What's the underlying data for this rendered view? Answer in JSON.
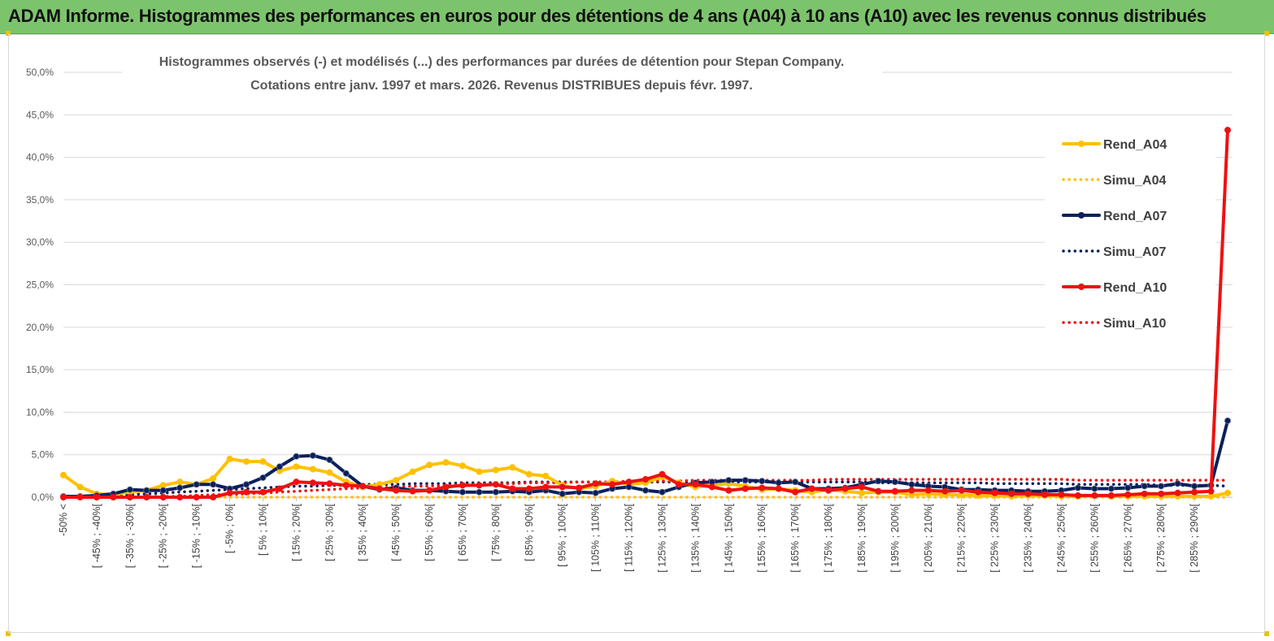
{
  "banner": {
    "title": "ADAM Informe. Histogrammes des performances en euros pour des détentions de 4 ans (A04) à 10 ans (A10) avec les revenus connus distribués",
    "color": "#7cc46c"
  },
  "chart_data": {
    "type": "line",
    "title": "",
    "subtitle_lines": [
      "Histogrammes observés (-) et modélisés (...) des performances par durées de détention pour Stepan Company.",
      "Cotations entre janv. 1997 et mars. 2026. Revenus DISTRIBUES depuis févr. 1997."
    ],
    "xlabel": "",
    "ylabel": "",
    "ylim": [
      0,
      50
    ],
    "y_ticks": [
      "0,0%",
      "5,0%",
      "10,0%",
      "15,0%",
      "20,0%",
      "25,0%",
      "30,0%",
      "35,0%",
      "40,0%",
      "45,0%",
      "50,0%"
    ],
    "grid": "horizontal",
    "legend_position": "right",
    "categories": [
      "-50% <",
      "[ -50% ; -45%[",
      "[ -45% ; -40%[",
      "[ -40% ; -35%[",
      "[ -35% ; -30%[",
      "[ -30% ; -25%[",
      "[ -25% ; -20%[",
      "[ -20% ; -15%[",
      "[ -15% ; -10%[",
      "[ -10% ; -5%[",
      "[ -5% ; 0%[",
      "[ 0% ; 5%[",
      "[ 5% ; 10%[",
      "[ 10% ; 15%[",
      "[ 15% ; 20%[",
      "[ 20% ; 25%[",
      "[ 25% ; 30%[",
      "[ 30% ; 35%[",
      "[ 35% ; 40%[",
      "[ 40% ; 45%[",
      "[ 45% ; 50%[",
      "[ 50% ; 55%[",
      "[ 55% ; 60%[",
      "[ 60% ; 65%[",
      "[ 65% ; 70%[",
      "[ 70% ; 75%[",
      "[ 75% ; 80%[",
      "[ 80% ; 85%[",
      "[ 85% ; 90%[",
      "[ 90% ; 95%[",
      "[ 95% ; 100%[",
      "[ 100% ; 105%[",
      "[ 105% ; 110%[",
      "[ 110% ; 115%[",
      "[ 115% ; 120%[",
      "[ 120% ; 125%[",
      "[ 125% ; 130%[",
      "[ 130% ; 135%[",
      "[ 135% ; 140%[",
      "[ 140% ; 145%[",
      "[ 145% ; 150%[",
      "[ 150% ; 155%[",
      "[ 155% ; 160%[",
      "[ 160% ; 165%[",
      "[ 165% ; 170%[",
      "[ 170% ; 175%[",
      "[ 175% ; 180%[",
      "[ 180% ; 185%[",
      "[ 185% ; 190%[",
      "[ 190% ; 195%[",
      "[ 195% ; 200%[",
      "[ 200% ; 205%[",
      "[ 205% ; 210%[",
      "[ 210% ; 215%[",
      "[ 215% ; 220%[",
      "[ 220% ; 225%[",
      "[ 225% ; 230%[",
      "[ 230% ; 235%[",
      "[ 235% ; 240%[",
      "[ 240% ; 245%[",
      "[ 245% ; 250%[",
      "[ 250% ; 255%[",
      "[ 255% ; 260%[",
      "[ 260% ; 265%[",
      "[ 265% ; 270%[",
      "[ 270% ; 275%[",
      "[ 275% ; 280%[",
      "[ 280% ; 285%[",
      "[ 285% ; 290%[",
      "[ 290% ; 295%[",
      "> 295%"
    ],
    "shown_x_tick_labels": [
      "-50% <",
      "[ -45% ; -40%[",
      "[ -35% ; -30%[",
      "[ -25% ; -20%[",
      "[ -15% ; -10%[",
      "[ -5% ; 0%[",
      "[ 5% ; 10%[",
      "[ 15% ; 20%[",
      "[ 25% ; 30%[",
      "[ 35% ; 40%[",
      "[ 45% ; 50%[",
      "[ 55% ; 60%[",
      "[ 65% ; 70%[",
      "[ 75% ; 80%[",
      "[ 85% ; 90%[",
      "[ 95% ; 100%[",
      "[ 105% ; 110%[",
      "[ 115% ; 120%[",
      "[ 125% ; 130%[",
      "[ 135% ; 140%[",
      "[ 145% ; 150%[",
      "[ 155% ; 160%[",
      "[ 165% ; 170%[",
      "[ 175% ; 180%[",
      "[ 185% ; 190%[",
      "[ 195% ; 200%[",
      "[ 205% ; 210%[",
      "[ 215% ; 220%[",
      "[ 225% ; 230%[",
      "[ 235% ; 240%[",
      "[ 245% ; 250%[",
      "[ 255% ; 260%[",
      "[ 265% ; 270%[",
      "[ 275% ; 280%[",
      "[ 285% ; 290%["
    ],
    "series": [
      {
        "name": "Rend_A04",
        "style": "solid",
        "color": "#ffc000",
        "values": [
          2.6,
          1.2,
          0.4,
          0.3,
          0.6,
          0.8,
          1.4,
          1.8,
          1.5,
          2.2,
          4.5,
          4.2,
          4.2,
          3.1,
          3.6,
          3.3,
          2.9,
          1.8,
          1.2,
          1.5,
          2.0,
          3.0,
          3.8,
          4.1,
          3.7,
          3.0,
          3.2,
          3.5,
          2.7,
          2.5,
          1.4,
          1.0,
          1.3,
          1.9,
          1.5,
          1.7,
          2.4,
          1.7,
          1.2,
          1.4,
          1.6,
          1.3,
          0.9,
          1.0,
          0.8,
          0.6,
          0.9,
          0.7,
          0.5,
          0.6,
          0.6,
          0.3,
          0.4,
          0.3,
          0.3,
          0.2,
          0.2,
          0.1,
          0.2,
          0.2,
          0.1,
          0.1,
          0.2,
          0.1,
          0.1,
          0.1,
          0.1,
          0.1,
          0.1,
          0.1,
          0.5
        ]
      },
      {
        "name": "Simu_A04",
        "style": "dotted",
        "color": "#ffc000",
        "values": [
          0.0,
          0.0,
          0.0,
          0.0,
          0.0,
          0.0,
          0.0,
          0.0,
          0.0,
          0.0,
          0.0,
          0.0,
          0.0,
          0.0,
          0.0,
          0.0,
          0.0,
          0.0,
          0.0,
          0.0,
          0.0,
          0.0,
          0.0,
          0.0,
          0.0,
          0.0,
          0.0,
          0.0,
          0.0,
          0.0,
          0.0,
          0.0,
          0.0,
          0.0,
          0.0,
          0.0,
          0.0,
          0.0,
          0.0,
          0.0,
          0.0,
          0.0,
          0.0,
          0.0,
          0.0,
          0.0,
          0.0,
          0.0,
          0.0,
          0.0,
          0.0,
          0.0,
          0.0,
          0.0,
          0.0,
          0.0,
          0.0,
          0.0,
          0.0,
          0.0,
          0.0,
          0.0,
          0.0,
          0.0,
          0.0,
          0.0,
          0.0,
          0.0,
          0.0,
          0.0,
          0.0
        ]
      },
      {
        "name": "Rend_A07",
        "style": "solid",
        "color": "#0a1f5c",
        "values": [
          0.1,
          0.1,
          0.2,
          0.4,
          0.9,
          0.8,
          0.8,
          1.1,
          1.5,
          1.5,
          1.0,
          1.5,
          2.3,
          3.6,
          4.8,
          4.9,
          4.4,
          2.8,
          1.3,
          0.9,
          1.1,
          0.8,
          0.8,
          0.7,
          0.6,
          0.6,
          0.6,
          0.7,
          0.6,
          0.8,
          0.4,
          0.6,
          0.5,
          1.0,
          1.2,
          0.8,
          0.6,
          1.2,
          1.7,
          1.8,
          2.0,
          2.0,
          1.9,
          1.7,
          1.8,
          1.0,
          1.0,
          1.1,
          1.5,
          1.9,
          1.8,
          1.5,
          1.3,
          1.2,
          0.9,
          0.9,
          0.8,
          0.8,
          0.7,
          0.7,
          0.8,
          1.1,
          1.0,
          1.0,
          1.1,
          1.3,
          1.3,
          1.6,
          1.3,
          1.4,
          9.0
        ]
      },
      {
        "name": "Simu_A07",
        "style": "dotted",
        "color": "#0a1f5c",
        "values": [
          0.0,
          0.1,
          0.1,
          0.2,
          0.3,
          0.4,
          0.5,
          0.6,
          0.7,
          0.8,
          0.9,
          1.0,
          1.1,
          1.2,
          1.3,
          1.3,
          1.4,
          1.4,
          1.5,
          1.5,
          1.5,
          1.6,
          1.6,
          1.6,
          1.7,
          1.7,
          1.7,
          1.7,
          1.8,
          1.8,
          1.8,
          1.8,
          1.8,
          1.8,
          1.8,
          1.8,
          1.8,
          1.8,
          1.8,
          1.8,
          1.8,
          1.8,
          1.8,
          1.8,
          1.8,
          1.8,
          1.8,
          1.8,
          1.8,
          1.7,
          1.7,
          1.7,
          1.7,
          1.7,
          1.7,
          1.7,
          1.6,
          1.6,
          1.6,
          1.6,
          1.6,
          1.5,
          1.5,
          1.5,
          1.5,
          1.5,
          1.4,
          1.4,
          1.4,
          1.4,
          1.3
        ]
      },
      {
        "name": "Rend_A10",
        "style": "solid",
        "color": "#ee1111",
        "values": [
          0.0,
          0.0,
          0.0,
          0.0,
          0.0,
          0.0,
          0.0,
          0.0,
          0.0,
          0.0,
          0.5,
          0.6,
          0.6,
          1.0,
          1.8,
          1.7,
          1.6,
          1.4,
          1.3,
          1.0,
          0.8,
          0.7,
          0.8,
          1.2,
          1.4,
          1.4,
          1.5,
          1.0,
          1.0,
          1.2,
          1.2,
          1.1,
          1.6,
          1.5,
          1.8,
          2.1,
          2.7,
          1.5,
          1.5,
          1.2,
          0.8,
          1.0,
          1.1,
          1.0,
          0.6,
          1.0,
          0.8,
          1.0,
          1.2,
          0.7,
          0.7,
          0.8,
          0.8,
          0.7,
          0.8,
          0.6,
          0.5,
          0.4,
          0.4,
          0.3,
          0.3,
          0.2,
          0.2,
          0.2,
          0.3,
          0.4,
          0.4,
          0.5,
          0.6,
          0.7,
          43.2
        ]
      },
      {
        "name": "Simu_A10",
        "style": "dotted",
        "color": "#ee1111",
        "values": [
          0.0,
          0.0,
          0.0,
          0.0,
          0.0,
          0.1,
          0.1,
          0.1,
          0.2,
          0.3,
          0.3,
          0.4,
          0.5,
          0.6,
          0.7,
          0.8,
          0.9,
          1.0,
          1.1,
          1.1,
          1.2,
          1.3,
          1.3,
          1.4,
          1.5,
          1.5,
          1.6,
          1.6,
          1.7,
          1.7,
          1.7,
          1.8,
          1.8,
          1.8,
          1.9,
          1.9,
          1.9,
          1.9,
          2.0,
          2.0,
          2.0,
          2.0,
          2.0,
          2.0,
          2.0,
          2.0,
          2.1,
          2.1,
          2.1,
          2.1,
          2.1,
          2.1,
          2.1,
          2.1,
          2.1,
          2.1,
          2.1,
          2.1,
          2.1,
          2.1,
          2.1,
          2.0,
          2.0,
          2.0,
          2.0,
          2.0,
          2.0,
          2.0,
          2.0,
          2.0,
          2.0
        ]
      }
    ]
  }
}
